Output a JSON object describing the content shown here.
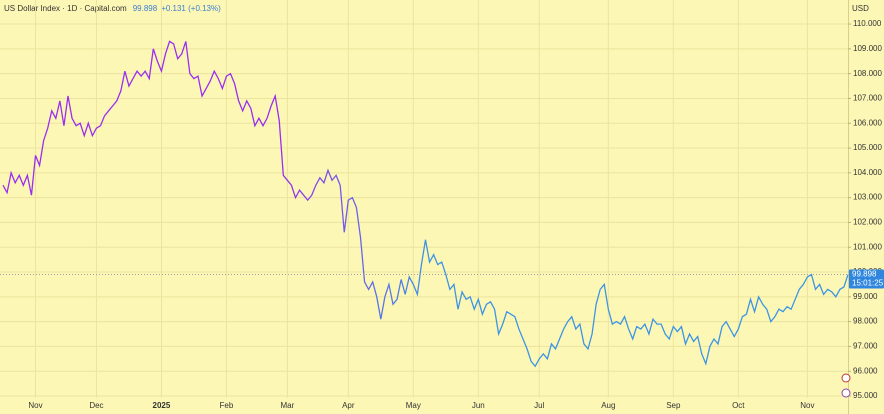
{
  "chart_data": {
    "type": "line",
    "title": "US Dollar Index · 1D · Capital.com",
    "price": "99.898",
    "change": "+0.131 (+0.13%)",
    "currency": "USD",
    "countdown": "15:01:25",
    "grid": true,
    "gradient": [
      "#9a2ef0",
      "#3b95e4"
    ],
    "ylim": [
      94.92,
      110.97
    ],
    "yticks": [
      {
        "value": 95,
        "label": "95.000"
      },
      {
        "value": 96,
        "label": "96.000"
      },
      {
        "value": 97,
        "label": "97.000"
      },
      {
        "value": 98,
        "label": "98.000"
      },
      {
        "value": 99,
        "label": "99.000"
      },
      {
        "value": 100,
        "label": "100.000"
      },
      {
        "value": 101,
        "label": "101.000"
      },
      {
        "value": 102,
        "label": "102.000"
      },
      {
        "value": 103,
        "label": "103.000"
      },
      {
        "value": 104,
        "label": "104.000"
      },
      {
        "value": 105,
        "label": "105.000"
      },
      {
        "value": 106,
        "label": "106.000"
      },
      {
        "value": 107,
        "label": "107.000"
      },
      {
        "value": 108,
        "label": "108.000"
      },
      {
        "value": 109,
        "label": "109.000"
      },
      {
        "value": 110,
        "label": "110.000"
      }
    ],
    "categories": [
      null,
      null,
      null,
      null,
      null,
      null,
      null,
      null,
      "Nov",
      null,
      null,
      null,
      null,
      null,
      null,
      null,
      null,
      null,
      null,
      null,
      null,
      null,
      null,
      "Dec",
      null,
      null,
      null,
      null,
      null,
      null,
      null,
      null,
      null,
      null,
      null,
      null,
      null,
      null,
      null,
      "2025",
      null,
      null,
      null,
      null,
      null,
      null,
      null,
      null,
      null,
      null,
      null,
      null,
      null,
      null,
      null,
      "Feb",
      null,
      null,
      null,
      null,
      null,
      null,
      null,
      null,
      null,
      null,
      null,
      null,
      null,
      null,
      "Mar",
      null,
      null,
      null,
      null,
      null,
      null,
      null,
      null,
      null,
      null,
      null,
      null,
      null,
      null,
      "Apr",
      null,
      null,
      null,
      null,
      null,
      null,
      null,
      null,
      null,
      null,
      null,
      null,
      null,
      null,
      null,
      "May",
      null,
      null,
      null,
      null,
      null,
      null,
      null,
      null,
      null,
      null,
      null,
      null,
      null,
      null,
      null,
      "Jun",
      null,
      null,
      null,
      null,
      null,
      null,
      null,
      null,
      null,
      null,
      null,
      null,
      null,
      null,
      "Jul",
      null,
      null,
      null,
      null,
      null,
      null,
      null,
      null,
      null,
      null,
      null,
      null,
      null,
      null,
      null,
      null,
      "Aug",
      null,
      null,
      null,
      null,
      null,
      null,
      null,
      null,
      null,
      null,
      null,
      null,
      null,
      null,
      null,
      "Sep",
      null,
      null,
      null,
      null,
      null,
      null,
      null,
      null,
      null,
      null,
      null,
      null,
      null,
      null,
      null,
      "Oct",
      null,
      null,
      null,
      null,
      null,
      null,
      null,
      null,
      null,
      null,
      null,
      null,
      null,
      null,
      null,
      null,
      "Nov",
      null,
      null,
      null,
      null,
      null,
      null,
      null,
      null,
      null,
      null
    ],
    "series": [
      {
        "name": "US Dollar Index",
        "color": "#3b95e4",
        "values": [
          103.5,
          103.2,
          104.0,
          103.6,
          103.9,
          103.5,
          103.9,
          103.1,
          104.7,
          104.3,
          105.3,
          105.8,
          106.5,
          106.2,
          106.9,
          105.9,
          107.1,
          106.2,
          105.9,
          106.0,
          105.5,
          106.0,
          105.5,
          105.8,
          105.9,
          106.3,
          106.5,
          106.7,
          106.9,
          107.3,
          108.1,
          107.5,
          107.8,
          108.1,
          107.9,
          108.1,
          107.8,
          109.0,
          108.5,
          108.1,
          108.8,
          109.3,
          109.2,
          108.6,
          108.8,
          109.3,
          108.0,
          107.8,
          107.9,
          107.1,
          107.4,
          107.7,
          108.1,
          107.8,
          107.4,
          107.9,
          108.0,
          107.6,
          106.9,
          106.5,
          106.9,
          106.6,
          105.9,
          106.2,
          105.9,
          106.2,
          106.7,
          107.1,
          106.1,
          103.9,
          103.7,
          103.5,
          103.0,
          103.3,
          103.1,
          102.9,
          103.1,
          103.5,
          103.8,
          103.6,
          104.1,
          103.7,
          103.9,
          103.5,
          101.6,
          102.9,
          103.0,
          102.6,
          101.4,
          99.6,
          99.3,
          99.6,
          99.0,
          98.1,
          99.0,
          99.5,
          98.7,
          98.9,
          99.7,
          99.1,
          99.8,
          99.5,
          99.1,
          100.3,
          101.3,
          100.4,
          100.7,
          100.3,
          100.4,
          99.9,
          99.3,
          99.5,
          98.5,
          99.2,
          98.9,
          99.0,
          98.5,
          98.9,
          98.3,
          98.7,
          98.8,
          98.5,
          97.5,
          97.9,
          98.4,
          98.3,
          98.2,
          97.7,
          97.3,
          96.9,
          96.4,
          96.2,
          96.5,
          96.7,
          96.5,
          97.1,
          96.9,
          97.3,
          97.7,
          98.0,
          98.2,
          97.7,
          97.9,
          97.1,
          96.9,
          97.5,
          98.7,
          99.3,
          99.5,
          98.5,
          97.9,
          98.0,
          97.9,
          98.2,
          97.7,
          97.3,
          97.8,
          97.7,
          97.9,
          97.5,
          98.1,
          97.9,
          97.9,
          97.5,
          97.3,
          97.8,
          97.6,
          97.8,
          97.1,
          97.5,
          97.2,
          97.4,
          96.7,
          96.3,
          97.0,
          97.3,
          97.1,
          97.8,
          98.0,
          97.7,
          97.4,
          97.7,
          98.2,
          98.3,
          98.9,
          98.4,
          99.0,
          98.7,
          98.5,
          98.0,
          98.2,
          98.5,
          98.4,
          98.6,
          98.5,
          98.9,
          99.3,
          99.5,
          99.8,
          99.9,
          99.3,
          99.5,
          99.1,
          99.3,
          99.2,
          99.0,
          99.3,
          99.4,
          99.898
        ]
      }
    ]
  }
}
